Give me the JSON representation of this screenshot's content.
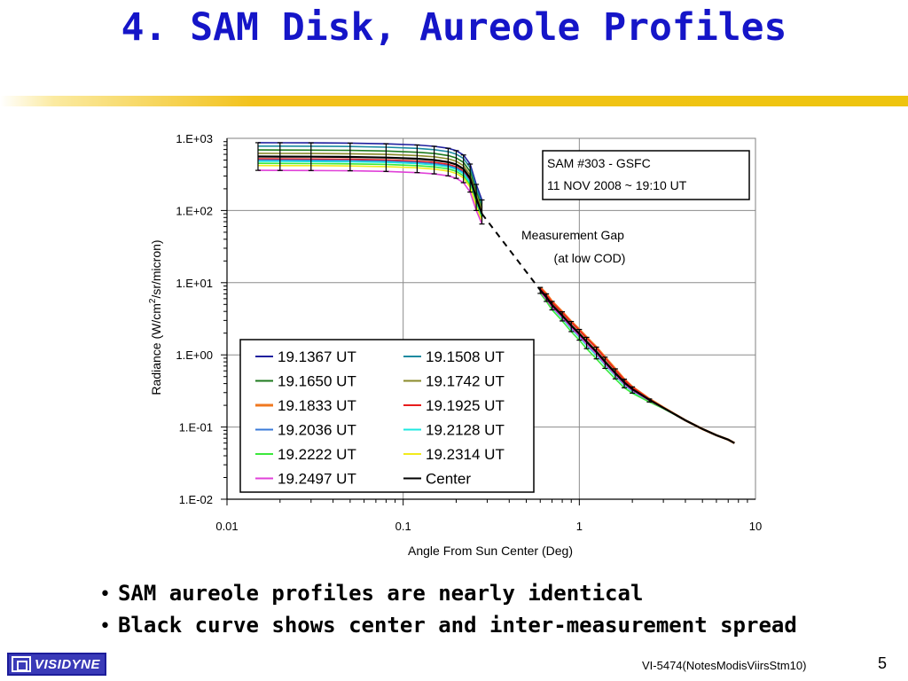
{
  "slide": {
    "title": "4. SAM Disk, Aureole Profiles",
    "bullets": [
      "SAM aureole profiles are nearly identical",
      "Black curve shows center and inter-measurement spread"
    ],
    "logo_text": "VISIDYNE",
    "footer_ref": "VI-5474(NotesModisViirsStm10)",
    "page_number": "5"
  },
  "chart_data": {
    "type": "line",
    "x_scale": "log",
    "y_scale": "log",
    "xlim": [
      0.01,
      10
    ],
    "ylim": [
      0.01,
      1000
    ],
    "xlabel": "Angle From Sun Center (Deg)",
    "ylabel_parts": [
      "Radiance (W/cm",
      "2",
      "/sr/micron)"
    ],
    "x_ticks": [
      {
        "value": 0.01,
        "label": "0.01"
      },
      {
        "value": 0.1,
        "label": "0.1"
      },
      {
        "value": 1,
        "label": "1"
      },
      {
        "value": 10,
        "label": "10"
      }
    ],
    "y_ticks": [
      {
        "value": 1000,
        "label": "1.E+03"
      },
      {
        "value": 100,
        "label": "1.E+02"
      },
      {
        "value": 10,
        "label": "1.E+01"
      },
      {
        "value": 1,
        "label": "1.E+00"
      },
      {
        "value": 0.1,
        "label": "1.E-01"
      },
      {
        "value": 0.01,
        "label": "1.E-02"
      }
    ],
    "grid": true,
    "info_box": [
      "SAM #303 - GSFC",
      "11 NOV 2008 ~ 19:10 UT"
    ],
    "annotation": [
      "Measurement Gap",
      "(at low COD)"
    ],
    "legend_position": "lower-left",
    "disk_x": [
      0.015,
      0.02,
      0.03,
      0.05,
      0.08,
      0.12,
      0.15,
      0.18,
      0.2,
      0.22,
      0.24,
      0.26,
      0.28
    ],
    "aureole_x": [
      0.6,
      0.65,
      0.7,
      0.8,
      0.9,
      1.0,
      1.1,
      1.25,
      1.4,
      1.6,
      1.8,
      2.0,
      2.5,
      3.0,
      4.0,
      5.0,
      6.0,
      7.0,
      7.6
    ],
    "aureole_clear_x": [
      0.6,
      0.65,
      0.7,
      0.8,
      0.9,
      1.0,
      1.1,
      1.25,
      1.4,
      1.6,
      1.8,
      2.0,
      2.5
    ],
    "series": [
      {
        "name": "19.1367 UT",
        "color": "#1f1f9e",
        "disk": [
          870,
          869,
          866,
          858,
          840,
          808,
          775,
          728,
          675,
          588,
          440,
          230,
          140
        ],
        "aureole": [
          8.0,
          6.4,
          5.0,
          3.55,
          2.6,
          2.0,
          1.55,
          1.12,
          0.82,
          0.57,
          0.42,
          0.34,
          0.24,
          0.185,
          0.124,
          0.094,
          0.077,
          0.067,
          0.06
        ]
      },
      {
        "name": "19.1508 UT",
        "color": "#1a8aa0",
        "disk": [
          780,
          779,
          777,
          770,
          754,
          726,
          697,
          654,
          605,
          526,
          392,
          205,
          125
        ],
        "aureole": [
          7.9,
          6.3,
          4.9,
          3.5,
          2.55,
          1.95,
          1.5,
          1.1,
          0.8,
          0.56,
          0.41,
          0.335,
          0.238,
          0.185,
          0.124,
          0.094,
          0.077,
          0.067,
          0.06
        ]
      },
      {
        "name": "19.1650 UT",
        "color": "#1e7a1e",
        "disk": [
          690,
          689,
          687,
          681,
          667,
          642,
          616,
          578,
          535,
          465,
          346,
          182,
          110
        ],
        "aureole": [
          7.8,
          6.2,
          4.85,
          3.45,
          2.5,
          1.92,
          1.48,
          1.08,
          0.79,
          0.55,
          0.405,
          0.33,
          0.236,
          0.185,
          0.124,
          0.094,
          0.077,
          0.067,
          0.06
        ]
      },
      {
        "name": "19.1742 UT",
        "color": "#8a8a2a",
        "disk": [
          620,
          619,
          617,
          612,
          600,
          578,
          555,
          520,
          482,
          418,
          310,
          165,
          100
        ],
        "aureole": [
          8.1,
          6.5,
          5.05,
          3.6,
          2.62,
          2.02,
          1.57,
          1.14,
          0.83,
          0.58,
          0.425,
          0.342,
          0.24,
          0.185,
          0.124,
          0.094,
          0.077,
          0.067,
          0.06
        ]
      },
      {
        "name": "19.1833 UT",
        "color": "#f07820",
        "disk": [
          560,
          559,
          557,
          552,
          541,
          521,
          500,
          469,
          434,
          377,
          280,
          150,
          92
        ],
        "aureole": [
          8.6,
          7.0,
          5.5,
          3.95,
          2.9,
          2.25,
          1.75,
          1.28,
          0.93,
          0.64,
          0.46,
          0.36,
          0.245,
          0.187,
          0.124,
          0.094,
          0.077,
          0.067,
          0.06
        ]
      },
      {
        "name": "19.1925 UT",
        "color": "#e81c1c",
        "disk": [
          520,
          519,
          517,
          513,
          503,
          484,
          465,
          436,
          403,
          350,
          260,
          140,
          86
        ],
        "aureole": [
          8.4,
          6.8,
          5.35,
          3.85,
          2.82,
          2.18,
          1.7,
          1.24,
          0.9,
          0.62,
          0.45,
          0.355,
          0.243,
          0.186,
          0.124,
          0.094,
          0.077,
          0.067,
          0.06
        ]
      },
      {
        "name": "19.2036 UT",
        "color": "#3a7ad8",
        "disk": [
          500,
          499,
          497,
          493,
          483,
          465,
          447,
          419,
          388,
          337,
          250,
          135,
          83
        ],
        "aureole": [
          7.7,
          6.1,
          4.75,
          3.38,
          2.45,
          1.88,
          1.44,
          1.05,
          0.77,
          0.54,
          0.4,
          0.325,
          0.234,
          0.184,
          0.124,
          0.094,
          0.077,
          0.067,
          0.06
        ]
      },
      {
        "name": "19.2128 UT",
        "color": "#1ee8e0",
        "disk": [
          480,
          479,
          477,
          473,
          464,
          447,
          429,
          402,
          372,
          324,
          240,
          130,
          80
        ],
        "aureole": [
          7.4,
          5.8,
          4.5,
          3.2,
          2.3,
          1.76,
          1.35,
          0.98,
          0.72,
          0.51,
          0.38,
          0.312,
          0.228,
          0.182,
          0.124,
          0.094,
          0.077,
          0.067,
          0.06
        ]
      },
      {
        "name": "19.2222 UT",
        "color": "#3ce83c",
        "disk": [
          450,
          449,
          447,
          443,
          435,
          419,
          402,
          377,
          349,
          303,
          225,
          122,
          76
        ],
        "aureole": [
          7.1,
          5.5,
          4.2,
          2.95,
          2.1,
          1.6,
          1.22,
          0.88,
          0.65,
          0.465,
          0.35,
          0.295,
          0.222,
          0.18,
          0.124,
          0.094,
          0.077,
          0.067,
          0.06
        ]
      },
      {
        "name": "19.2314 UT",
        "color": "#f2ea1c",
        "disk": [
          420,
          419,
          418,
          414,
          406,
          391,
          375,
          352,
          326,
          283,
          210,
          115,
          72
        ],
        "aureole": [
          7.6,
          6.0,
          4.7,
          3.35,
          2.42,
          1.86,
          1.43,
          1.04,
          0.76,
          0.535,
          0.398,
          0.324,
          0.233,
          0.184,
          0.124,
          0.094,
          0.077,
          0.067,
          0.06
        ]
      },
      {
        "name": "19.2497 UT",
        "color": "#e040d8",
        "disk": [
          360,
          359,
          358,
          355,
          348,
          335,
          322,
          302,
          279,
          243,
          180,
          100,
          65
        ],
        "aureole": [
          7.5,
          5.9,
          4.6,
          3.3,
          2.38,
          1.83,
          1.41,
          1.03,
          0.75,
          0.53,
          0.395,
          0.322,
          0.232,
          0.183,
          0.124,
          0.094,
          0.077,
          0.067,
          0.06
        ]
      },
      {
        "name": "Center",
        "color": "#000000",
        "disk": [
          560,
          559,
          557,
          552,
          541,
          521,
          500,
          469,
          434,
          377,
          280,
          148,
          90
        ],
        "aureole": [
          7.9,
          6.3,
          4.9,
          3.5,
          2.55,
          1.96,
          1.52,
          1.1,
          0.8,
          0.56,
          0.415,
          0.335,
          0.238,
          0.185,
          0.124,
          0.094,
          0.077,
          0.067,
          0.06
        ],
        "disk_err_lo": [
          360,
          359,
          358,
          355,
          348,
          335,
          322,
          302,
          279,
          243,
          180,
          100,
          65
        ],
        "disk_err_hi": [
          870,
          869,
          866,
          858,
          840,
          808,
          775,
          728,
          675,
          588,
          440,
          230,
          140
        ],
        "aureole_err_lo": [
          7.1,
          5.5,
          4.2,
          2.95,
          2.1,
          1.6,
          1.22,
          0.88,
          0.65,
          0.465,
          0.35,
          0.295,
          0.222
        ],
        "aureole_err_hi": [
          8.6,
          7.0,
          5.5,
          3.95,
          2.9,
          2.25,
          1.75,
          1.28,
          0.93,
          0.64,
          0.46,
          0.36,
          0.245
        ]
      }
    ],
    "gap_line": {
      "x": [
        0.28,
        0.6
      ],
      "y": [
        90,
        7.9
      ]
    }
  }
}
